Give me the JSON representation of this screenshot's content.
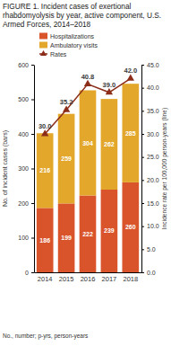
{
  "chart_data": {
    "type": "bar",
    "title": "FIGURE 1. Incident cases of exertional rhabdomyolysis by year, active component, U.S. Armed Forces, 2014–2018",
    "y_label": "No. of incident cases (bars)",
    "y2_label": "Incidence rate per 100,000 person-years (line)",
    "footnote": "No., number; p-yrs, person-years",
    "categories": [
      "2014",
      "2015",
      "2016",
      "2017",
      "2018"
    ],
    "stacked": true,
    "data_labels": true,
    "legend": "upper left",
    "ylim": [
      0,
      600
    ],
    "yticks": [
      0,
      100,
      200,
      300,
      400,
      500,
      600
    ],
    "y2lim": [
      0,
      45
    ],
    "y2ticks": [
      {
        "value": 0,
        "label": "0.0"
      },
      {
        "value": 5,
        "label": "5.0"
      },
      {
        "value": 10,
        "label": "10.0"
      },
      {
        "value": 15,
        "label": "15.0"
      },
      {
        "value": 20,
        "label": "20.0"
      },
      {
        "value": 25,
        "label": "25.0"
      },
      {
        "value": 30,
        "label": "30.0"
      },
      {
        "value": 35,
        "label": "35.0"
      },
      {
        "value": 40,
        "label": "40.0"
      },
      {
        "value": 45,
        "label": "45.0"
      }
    ],
    "series": [
      {
        "name": "Hospitalizations",
        "type": "bar",
        "color": "#d9542b",
        "values": [
          186,
          199,
          222,
          239,
          260
        ]
      },
      {
        "name": "Ambulatory visits",
        "type": "bar",
        "color": "#e3a82b",
        "values": [
          216,
          259,
          304,
          262,
          285
        ]
      },
      {
        "name": "Rates",
        "type": "line",
        "axis": "y2",
        "color": "#8c2d19",
        "marker": "triangle",
        "values": [
          30.0,
          35.2,
          40.8,
          39.0,
          42.0
        ],
        "value_labels": [
          "30.0",
          "35.2",
          "40.8",
          "39.0",
          "42.0"
        ]
      }
    ]
  }
}
